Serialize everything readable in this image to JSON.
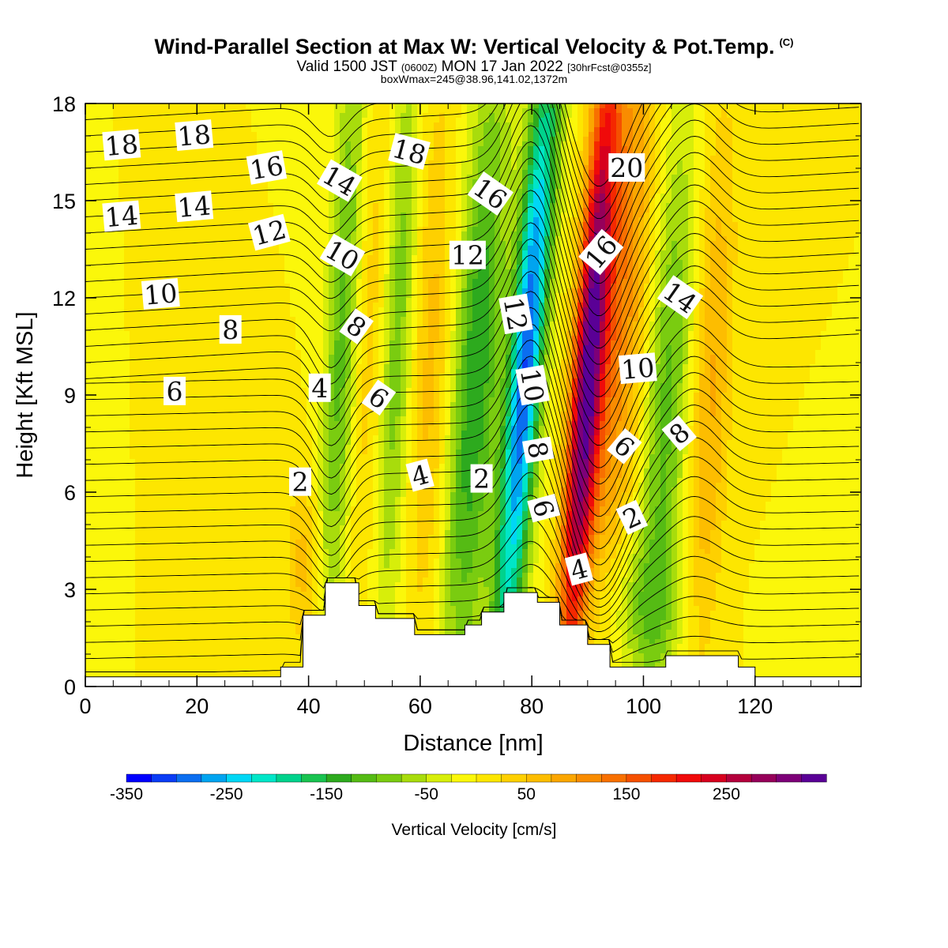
{
  "title": {
    "main": "Wind-Parallel Section at Max W: Vertical Velocity & Pot.Temp.",
    "copyright_mark": "(C)",
    "valid_prefix": "Valid 1500 JST",
    "valid_utc": "(0600Z)",
    "valid_date": "MON 17 Jan 2022",
    "forecast": "[30hrFcst@0355z]",
    "box_info": "boxWmax=245@38.96,141.02,1372m"
  },
  "chart_data": {
    "type": "heatmap",
    "xlabel": "Distance [nm]",
    "ylabel": "Height [Kft MSL]",
    "xlim": [
      0,
      139
    ],
    "ylim": [
      0,
      18
    ],
    "xticks": [
      0,
      20,
      40,
      60,
      80,
      100,
      120
    ],
    "yticks": [
      0,
      3,
      6,
      9,
      12,
      15,
      18
    ],
    "colorbar": {
      "label": "Vertical Velocity [cm/s]",
      "tick_labels": [
        "-350",
        "-250",
        "-150",
        "-50",
        "50",
        "150",
        "250"
      ],
      "tick_values": [
        -350,
        -250,
        -150,
        -50,
        50,
        150,
        250
      ],
      "levels": [
        -350,
        -325,
        -300,
        -275,
        -250,
        -225,
        -200,
        -175,
        -150,
        -125,
        -100,
        -75,
        -50,
        -25,
        0,
        25,
        50,
        75,
        100,
        125,
        150,
        175,
        200,
        225,
        250,
        275,
        300,
        325
      ],
      "colors": [
        "#0000ff",
        "#0a3cf5",
        "#0b6ef0",
        "#00a4f0",
        "#00d7f5",
        "#00e6c8",
        "#00d28c",
        "#19c350",
        "#2daa1e",
        "#55bb14",
        "#7acc10",
        "#a8dc0c",
        "#d7ee0a",
        "#fbf70a",
        "#fde600",
        "#fed000",
        "#fdbd00",
        "#fba600",
        "#f98c00",
        "#f87000",
        "#f55000",
        "#f52800",
        "#f00a0a",
        "#d7001e",
        "#b4003c",
        "#96005a",
        "#7d0078",
        "#5a0096"
      ]
    },
    "velocity_features": [
      {
        "x": 39,
        "y": 3.8,
        "sx": 2.0,
        "sy": 1.8,
        "amp": 60
      },
      {
        "x": 46,
        "y": 11,
        "sx": 2.0,
        "sy": 7.0,
        "amp": -110,
        "tilt": 0.25
      },
      {
        "x": 56,
        "y": 11,
        "sx": 2.0,
        "sy": 7.0,
        "amp": -90,
        "tilt": 0.25
      },
      {
        "x": 51,
        "y": 11,
        "sx": 2.0,
        "sy": 6.0,
        "amp": 40,
        "tilt": 0.25
      },
      {
        "x": 62,
        "y": 10,
        "sx": 2.5,
        "sy": 6.0,
        "amp": 60,
        "tilt": 0.2
      },
      {
        "x": 70,
        "y": 9.5,
        "sx": 3.0,
        "sy": 7.0,
        "amp": -150,
        "tilt": 0.35
      },
      {
        "x": 79,
        "y": 10,
        "sx": 2.2,
        "sy": 7.5,
        "amp": -300,
        "tilt": 0.45
      },
      {
        "x": 90,
        "y": 9.5,
        "sx": 2.0,
        "sy": 7.0,
        "amp": 320,
        "tilt": 0.4
      },
      {
        "x": 96,
        "y": 12,
        "sx": 3.5,
        "sy": 7.0,
        "amp": 120,
        "tilt": 0.35
      },
      {
        "x": 104,
        "y": 8.5,
        "sx": 3.0,
        "sy": 6.5,
        "amp": -110,
        "tilt": 0.3
      },
      {
        "x": 112,
        "y": 9,
        "sx": 2.5,
        "sy": 6.0,
        "amp": 80,
        "tilt": 0.25
      },
      {
        "x": 99,
        "y": 2.5,
        "sx": 6.0,
        "sy": 1.5,
        "amp": -60
      }
    ],
    "terrain": [
      [
        35,
        0.6
      ],
      [
        39,
        2.2
      ],
      [
        43,
        3.2
      ],
      [
        49,
        2.5
      ],
      [
        52,
        2.1
      ],
      [
        59,
        1.6
      ],
      [
        68,
        1.9
      ],
      [
        71,
        2.3
      ],
      [
        75,
        2.9
      ],
      [
        81,
        2.6
      ],
      [
        85,
        1.9
      ],
      [
        90,
        1.3
      ],
      [
        94,
        0.6
      ],
      [
        104,
        0.95
      ],
      [
        117,
        0.6
      ],
      [
        120,
        0.3
      ],
      [
        139,
        0.3
      ]
    ],
    "theta_labels": [
      {
        "text": "18",
        "x": 6.5,
        "y": 16.7,
        "rot": -5
      },
      {
        "text": "18",
        "x": 19.5,
        "y": 17.0,
        "rot": -5
      },
      {
        "text": "16",
        "x": 32.5,
        "y": 16.0,
        "rot": -10
      },
      {
        "text": "14",
        "x": 6.5,
        "y": 14.5,
        "rot": -5
      },
      {
        "text": "14",
        "x": 19.5,
        "y": 14.8,
        "rot": -5
      },
      {
        "text": "14",
        "x": 45.5,
        "y": 15.6,
        "rot": 30
      },
      {
        "text": "18",
        "x": 58,
        "y": 16.5,
        "rot": 15
      },
      {
        "text": "16",
        "x": 72.5,
        "y": 15.2,
        "rot": 35
      },
      {
        "text": "20",
        "x": 97,
        "y": 16.0,
        "rot": 0
      },
      {
        "text": "12",
        "x": 33,
        "y": 14.0,
        "rot": -15
      },
      {
        "text": "10",
        "x": 46,
        "y": 13.3,
        "rot": 30
      },
      {
        "text": "12",
        "x": 68.5,
        "y": 13.3,
        "rot": 0
      },
      {
        "text": "16",
        "x": 92.5,
        "y": 13.4,
        "rot": -50
      },
      {
        "text": "10",
        "x": 13.5,
        "y": 12.1,
        "rot": -5
      },
      {
        "text": "14",
        "x": 106.5,
        "y": 12.0,
        "rot": 35
      },
      {
        "text": "12",
        "x": 77,
        "y": 11.5,
        "rot": 80
      },
      {
        "text": "8",
        "x": 26,
        "y": 11.0,
        "rot": 0
      },
      {
        "text": "8",
        "x": 48.5,
        "y": 11.1,
        "rot": 35
      },
      {
        "text": "10",
        "x": 99,
        "y": 9.8,
        "rot": -5
      },
      {
        "text": "10",
        "x": 80,
        "y": 9.3,
        "rot": 80
      },
      {
        "text": "6",
        "x": 16,
        "y": 9.1,
        "rot": 0
      },
      {
        "text": "4",
        "x": 42,
        "y": 9.2,
        "rot": 0
      },
      {
        "text": "6",
        "x": 52.5,
        "y": 8.9,
        "rot": 35
      },
      {
        "text": "8",
        "x": 106.5,
        "y": 7.8,
        "rot": -40
      },
      {
        "text": "6",
        "x": 96.5,
        "y": 7.4,
        "rot": 40
      },
      {
        "text": "8",
        "x": 81,
        "y": 7.3,
        "rot": 80
      },
      {
        "text": "4",
        "x": 60,
        "y": 6.5,
        "rot": -15
      },
      {
        "text": "2",
        "x": 38.5,
        "y": 6.3,
        "rot": 0
      },
      {
        "text": "2",
        "x": 71,
        "y": 6.4,
        "rot": 0
      },
      {
        "text": "6",
        "x": 82,
        "y": 5.5,
        "rot": 75
      },
      {
        "text": "2",
        "x": 98,
        "y": 5.2,
        "rot": -25
      },
      {
        "text": "4",
        "x": 88.5,
        "y": 3.6,
        "rot": -15
      }
    ]
  }
}
